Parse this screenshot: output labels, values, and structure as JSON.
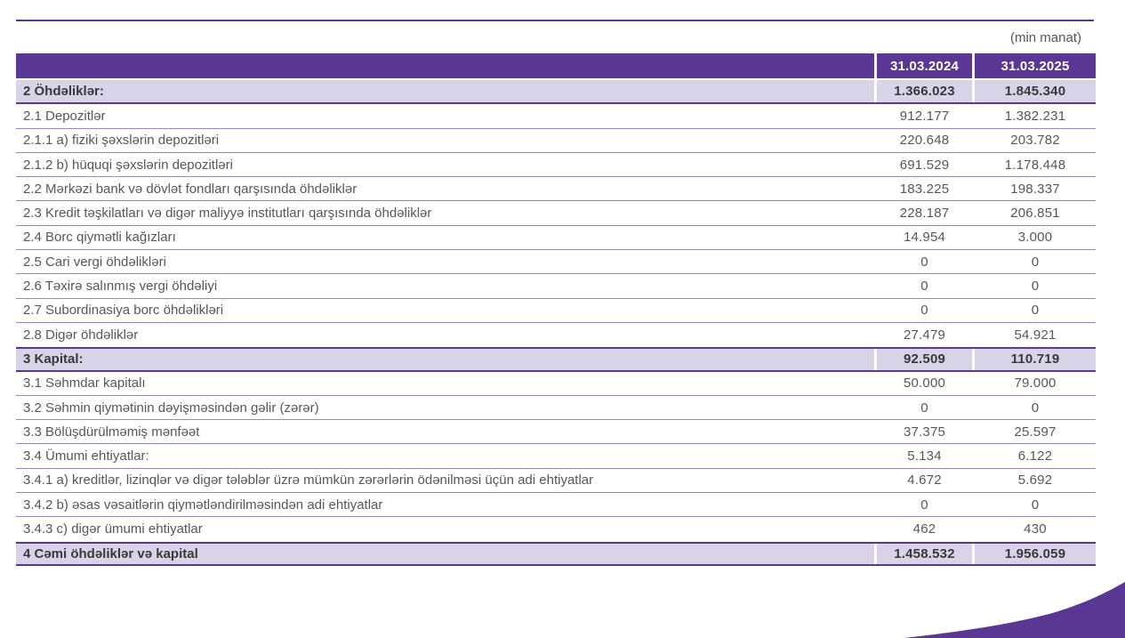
{
  "unit_note": "(min manat)",
  "colors": {
    "brand_purple": "#5B3794",
    "highlight_row": "#D9D3E8",
    "separator": "#9C87C3",
    "text_gray": "#57575B"
  },
  "table": {
    "columns": [
      "31.03.2024",
      "31.03.2025"
    ],
    "rows": [
      {
        "label": "2 Öhdəliklər:",
        "v2024": "1.366.023",
        "v2025": "1.845.340",
        "section": true
      },
      {
        "label": "2.1 Depozitlər",
        "v2024": "912.177",
        "v2025": "1.382.231",
        "section": false
      },
      {
        "label": "2.1.1 a) fiziki şəxslərin depozitləri",
        "v2024": "220.648",
        "v2025": "203.782",
        "section": false
      },
      {
        "label": "2.1.2 b) hüquqi şəxslərin depozitləri",
        "v2024": "691.529",
        "v2025": "1.178.448",
        "section": false
      },
      {
        "label": "2.2 Mərkəzi bank və dövlət fondları qarşısında öhdəliklər",
        "v2024": "183.225",
        "v2025": "198.337",
        "section": false
      },
      {
        "label": "2.3 Kredit təşkilatları və digər maliyyə institutları qarşısında öhdəliklər",
        "v2024": "228.187",
        "v2025": "206.851",
        "section": false
      },
      {
        "label": "2.4 Borc qiymətli kağızları",
        "v2024": "14.954",
        "v2025": "3.000",
        "section": false
      },
      {
        "label": "2.5 Cari vergi öhdəlikləri",
        "v2024": "0",
        "v2025": "0",
        "section": false
      },
      {
        "label": "2.6 Təxirə salınmış vergi öhdəliyi",
        "v2024": "0",
        "v2025": "0",
        "section": false
      },
      {
        "label": "2.7 Subordinasiya borc öhdəlikləri",
        "v2024": "0",
        "v2025": "0",
        "section": false
      },
      {
        "label": "2.8 Digər öhdəliklər",
        "v2024": "27.479",
        "v2025": "54.921",
        "section": false
      },
      {
        "label": "3 Kapital:",
        "v2024": "92.509",
        "v2025": "110.719",
        "section": true
      },
      {
        "label": "3.1 Səhmdar kapitalı",
        "v2024": "50.000",
        "v2025": "79.000",
        "section": false
      },
      {
        "label": "3.2 Səhmin qiymətinin dəyişməsindən gəlir (zərər)",
        "v2024": "0",
        "v2025": "0",
        "section": false
      },
      {
        "label": "3.3 Bölüşdürülməmiş mənfəət",
        "v2024": "37.375",
        "v2025": "25.597",
        "section": false
      },
      {
        "label": "3.4 Ümumi ehtiyatlar:",
        "v2024": "5.134",
        "v2025": "6.122",
        "section": false
      },
      {
        "label": "3.4.1 a) kreditlər, lizinqlər və digər tələblər üzrə mümkün zərərlərin ödənilməsi üçün adi ehtiyatlar",
        "v2024": "4.672",
        "v2025": "5.692",
        "section": false
      },
      {
        "label": "3.4.2 b) əsas vəsaitlərin qiymətləndirilməsindən adi ehtiyatlar",
        "v2024": "0",
        "v2025": "0",
        "section": false
      },
      {
        "label": "3.4.3 c) digər ümumi ehtiyatlar",
        "v2024": "462",
        "v2025": "430",
        "section": false
      },
      {
        "label": "4 Cəmi öhdəliklər və kapital",
        "v2024": "1.458.532",
        "v2025": "1.956.059",
        "section": true
      }
    ]
  }
}
